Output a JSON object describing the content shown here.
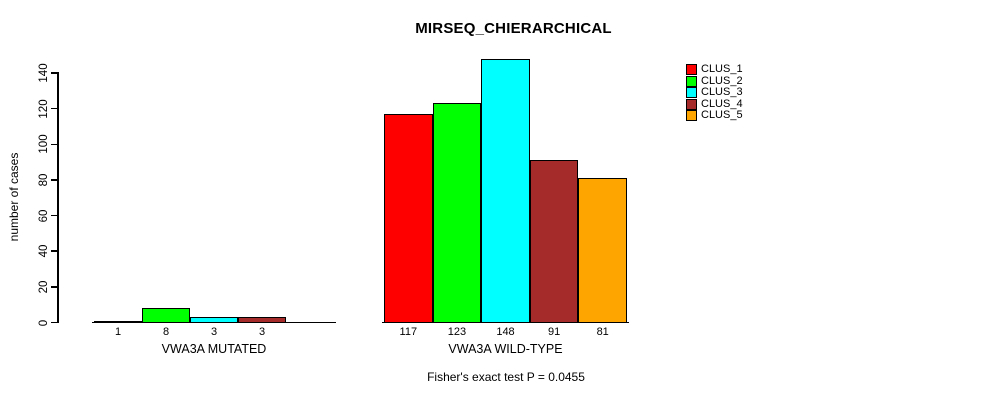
{
  "chart_data": {
    "type": "bar",
    "title": "MIRSEQ_CHIERARCHICAL",
    "xlabel": "",
    "ylabel": "number of cases",
    "ylim": [
      0,
      140
    ],
    "yticks": [
      0,
      20,
      40,
      60,
      80,
      100,
      120,
      140
    ],
    "grid": false,
    "legend_position": "top-right",
    "series": [
      {
        "name": "CLUS_1",
        "color": "#ff0000"
      },
      {
        "name": "CLUS_2",
        "color": "#00ff00"
      },
      {
        "name": "CLUS_3",
        "color": "#00ffff"
      },
      {
        "name": "CLUS_4",
        "color": "#a52a2a"
      },
      {
        "name": "CLUS_5",
        "color": "#ffa500"
      }
    ],
    "groups": [
      {
        "label": "VWA3A MUTATED",
        "values": [
          1,
          8,
          3,
          3,
          0
        ],
        "bar_labels": [
          "1",
          "8",
          "3",
          "3",
          ""
        ]
      },
      {
        "label": "VWA3A WILD-TYPE",
        "values": [
          117,
          123,
          148,
          91,
          81
        ],
        "bar_labels": [
          "117",
          "123",
          "148",
          "91",
          "81"
        ]
      }
    ],
    "annotation": "Fisher's exact test P = 0.0455"
  }
}
